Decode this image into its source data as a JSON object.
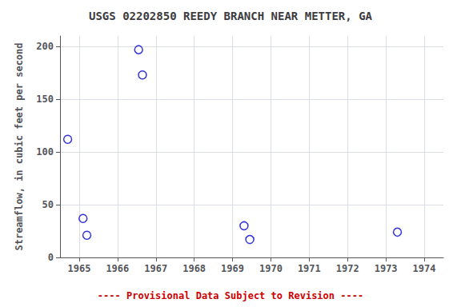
{
  "chart_data": {
    "type": "scatter",
    "title": "USGS 02202850 REEDY BRANCH NEAR METTER, GA",
    "ylabel": "Streamflow, in cubic feet per second",
    "annotation": "---- Provisional Data Subject to Revision ----",
    "x": [
      1964.7,
      1965.1,
      1965.2,
      1966.55,
      1966.65,
      1969.3,
      1969.45,
      1973.3
    ],
    "values": [
      112,
      37,
      21,
      197,
      173,
      30,
      17,
      24
    ],
    "color": "#0000CC",
    "marker": "circle",
    "xlim": [
      1964.5,
      1974.5
    ],
    "xticks": [
      1965,
      1966,
      1967,
      1968,
      1969,
      1970,
      1971,
      1972,
      1973,
      1974
    ],
    "ylim": [
      0,
      210
    ],
    "yticks": [
      0,
      50,
      100,
      150,
      200
    ],
    "grid": true
  }
}
